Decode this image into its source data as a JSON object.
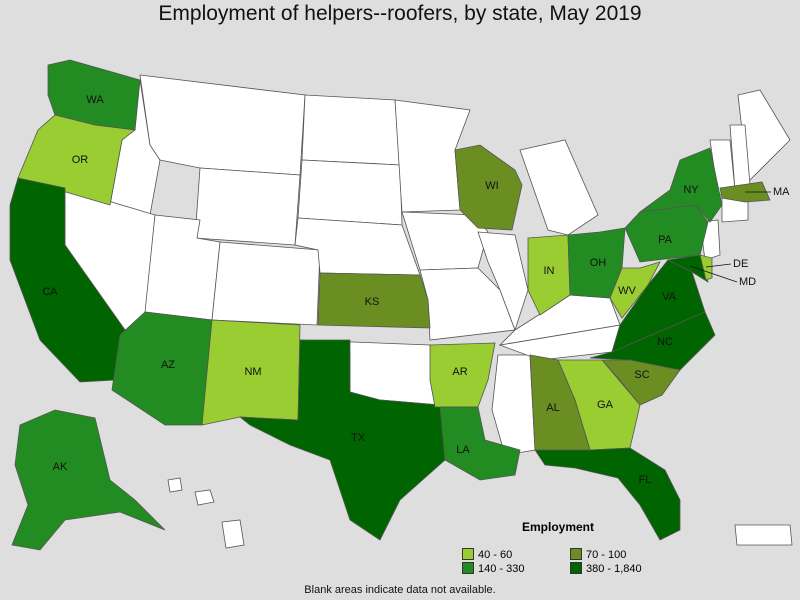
{
  "title": "Employment of helpers--roofers, by state, May 2019",
  "note": "Blank areas indicate data not available.",
  "colors": {
    "blank": "#ffffff",
    "lakes": "#dedede"
  },
  "legend": {
    "title": "Employment",
    "items": [
      {
        "label": "40 - 60",
        "color": "#9acd32"
      },
      {
        "label": "70 - 100",
        "color": "#6b8e23"
      },
      {
        "label": "140 - 330",
        "color": "#228b22"
      },
      {
        "label": "380 - 1,840",
        "color": "#006400"
      }
    ]
  },
  "states": [
    {
      "abbr": "WA",
      "bin": 2
    },
    {
      "abbr": "OR",
      "bin": 0
    },
    {
      "abbr": "CA",
      "bin": 3
    },
    {
      "abbr": "AZ",
      "bin": 2
    },
    {
      "abbr": "NM",
      "bin": 0
    },
    {
      "abbr": "TX",
      "bin": 3
    },
    {
      "abbr": "KS",
      "bin": 1
    },
    {
      "abbr": "AR",
      "bin": 0
    },
    {
      "abbr": "LA",
      "bin": 2
    },
    {
      "abbr": "WI",
      "bin": 1
    },
    {
      "abbr": "IN",
      "bin": 0
    },
    {
      "abbr": "OH",
      "bin": 2
    },
    {
      "abbr": "WV",
      "bin": 0
    },
    {
      "abbr": "VA",
      "bin": 3
    },
    {
      "abbr": "NC",
      "bin": 3
    },
    {
      "abbr": "SC",
      "bin": 1
    },
    {
      "abbr": "GA",
      "bin": 0
    },
    {
      "abbr": "AL",
      "bin": 1
    },
    {
      "abbr": "FL",
      "bin": 3
    },
    {
      "abbr": "PA",
      "bin": 2
    },
    {
      "abbr": "NY",
      "bin": 2
    },
    {
      "abbr": "MA",
      "bin": 1
    },
    {
      "abbr": "MD",
      "bin": 3
    },
    {
      "abbr": "DE",
      "bin": 0
    },
    {
      "abbr": "AK",
      "bin": 2
    }
  ]
}
